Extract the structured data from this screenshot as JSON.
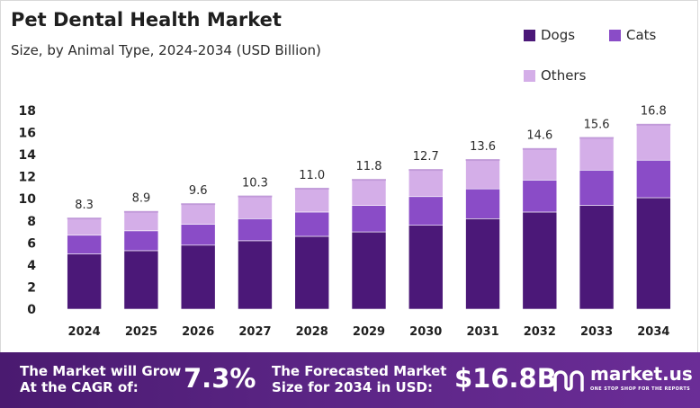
{
  "title": "Pet Dental Health Market",
  "subtitle": "Size, by Animal Type, 2024-2034 (USD Billion)",
  "legend": [
    {
      "label": "Dogs",
      "color": "#4b1878"
    },
    {
      "label": "Cats",
      "color": "#8a4cc7"
    },
    {
      "label": "Others",
      "color": "#d4aee8"
    }
  ],
  "chart_data": {
    "type": "bar",
    "stacked": true,
    "categories": [
      "2024",
      "2025",
      "2026",
      "2027",
      "2028",
      "2029",
      "2030",
      "2031",
      "2032",
      "2033",
      "2034"
    ],
    "series": [
      {
        "name": "Dogs",
        "values": [
          5.0,
          5.3,
          5.8,
          6.2,
          6.6,
          7.0,
          7.6,
          8.2,
          8.8,
          9.4,
          10.1
        ],
        "color": "#4b1878"
      },
      {
        "name": "Cats",
        "values": [
          1.7,
          1.8,
          1.9,
          2.0,
          2.2,
          2.4,
          2.6,
          2.7,
          2.9,
          3.2,
          3.4
        ],
        "color": "#8a4cc7"
      },
      {
        "name": "Others",
        "values": [
          1.6,
          1.8,
          1.9,
          2.1,
          2.2,
          2.4,
          2.5,
          2.7,
          2.9,
          3.0,
          3.3
        ],
        "color": "#d4aee8"
      }
    ],
    "totals": [
      "8.3",
      "8.9",
      "9.6",
      "10.3",
      "11.0",
      "11.8",
      "12.7",
      "13.6",
      "14.6",
      "15.6",
      "16.8"
    ],
    "yticks": [
      0,
      2,
      4,
      6,
      8,
      10,
      12,
      14,
      16,
      18
    ],
    "ylim": [
      0,
      18
    ],
    "grid": false,
    "legend_position": "top-right"
  },
  "banner": {
    "cagr_label_line1": "The Market will Grow",
    "cagr_label_line2": "At the CAGR of:",
    "cagr_value": "7.3%",
    "forecast_label_line1": "The Forecasted Market",
    "forecast_label_line2": "Size for 2034 in USD:",
    "forecast_value": "$16.8B",
    "brand": "market.us",
    "brand_tagline": "ONE STOP SHOP FOR THE REPORTS",
    "background_color": "#5b2585"
  }
}
